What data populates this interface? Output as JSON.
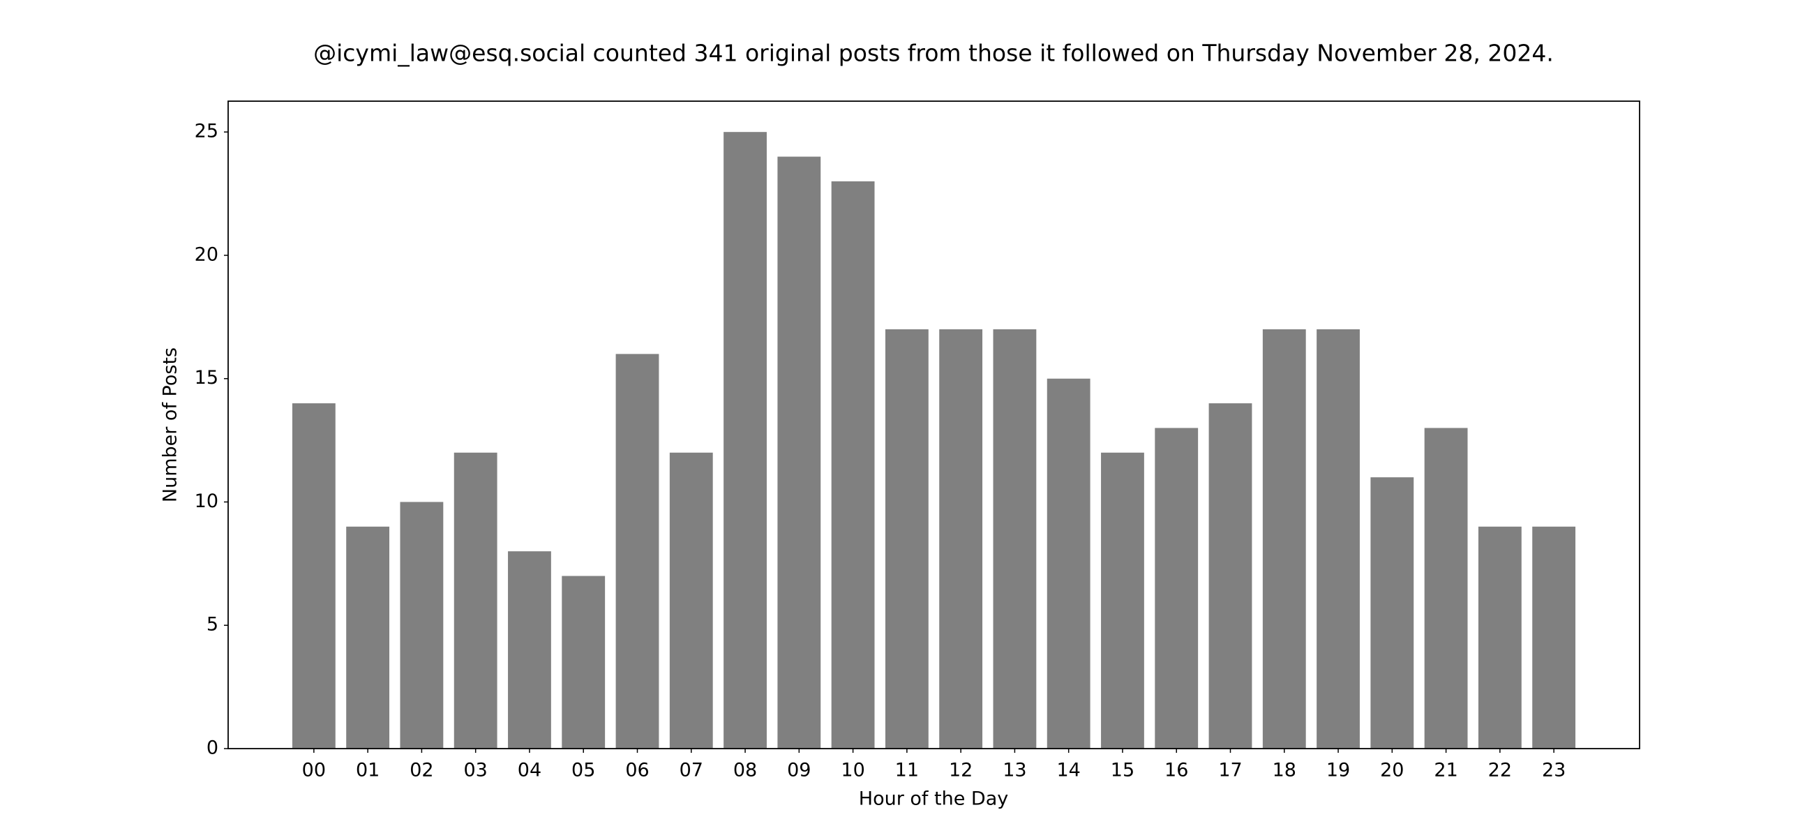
{
  "chart_data": {
    "type": "bar",
    "title": "@icymi_law@esq.social counted 341 original posts from those it followed on Thursday November 28, 2024.",
    "xlabel": "Hour of the Day",
    "ylabel": "Number of Posts",
    "categories": [
      "00",
      "01",
      "02",
      "03",
      "04",
      "05",
      "06",
      "07",
      "08",
      "09",
      "10",
      "11",
      "12",
      "13",
      "14",
      "15",
      "16",
      "17",
      "18",
      "19",
      "20",
      "21",
      "22",
      "23"
    ],
    "values": [
      14,
      9,
      10,
      12,
      8,
      7,
      16,
      12,
      25,
      24,
      23,
      17,
      17,
      17,
      15,
      12,
      13,
      14,
      17,
      17,
      11,
      13,
      9,
      9
    ],
    "color": "#808080",
    "ylim": [
      0,
      26.25
    ],
    "yticks": [
      0,
      5,
      10,
      15,
      20,
      25
    ],
    "grid": false
  }
}
